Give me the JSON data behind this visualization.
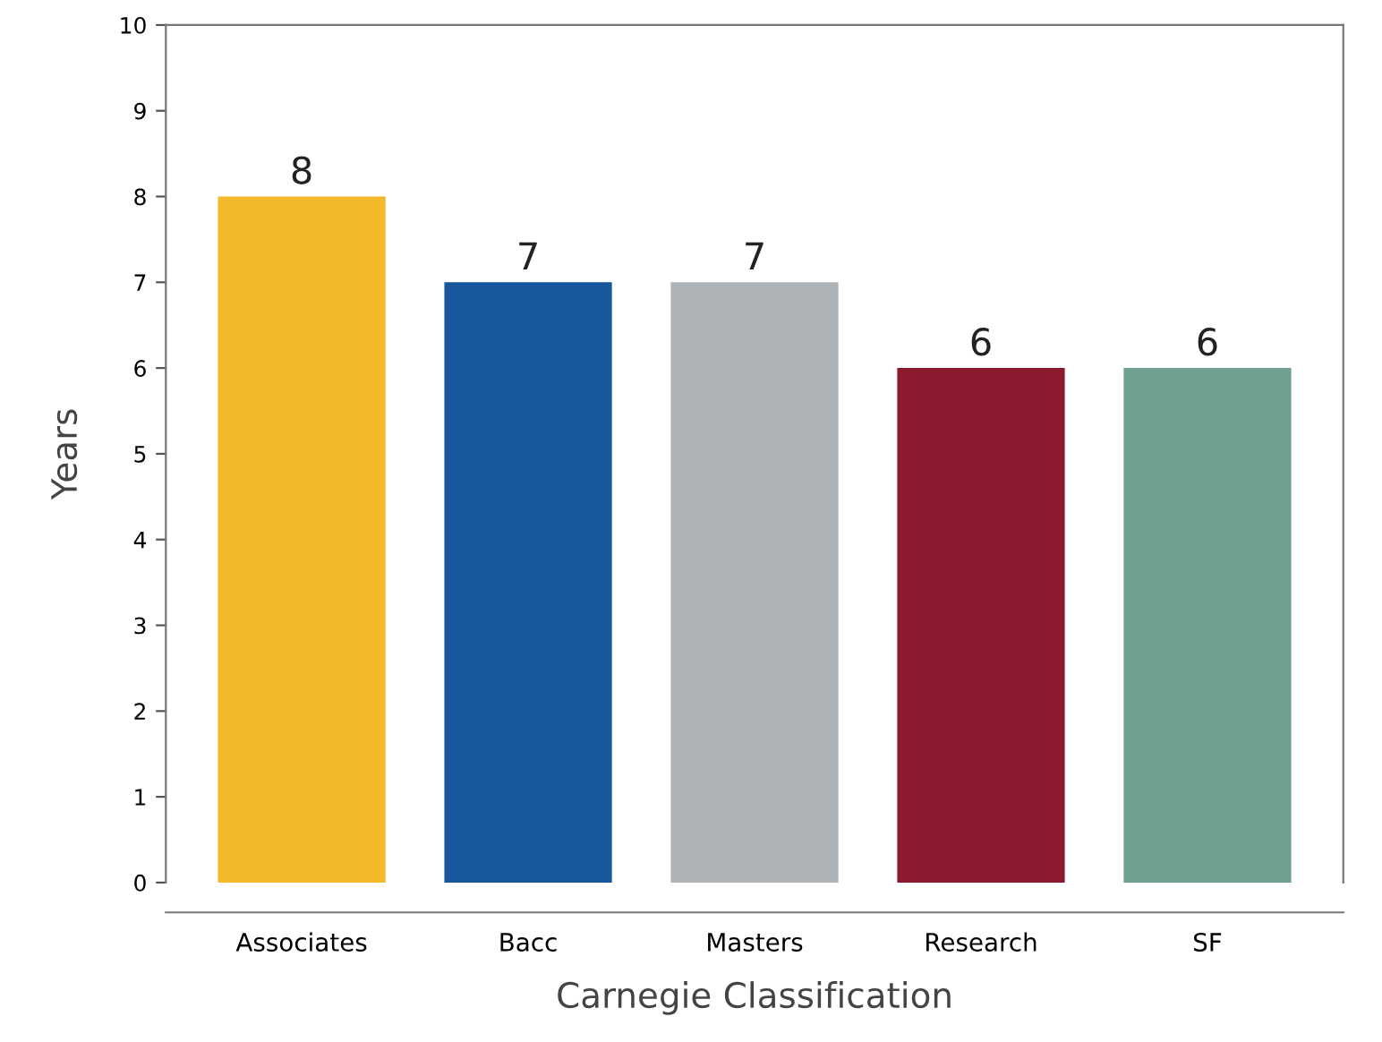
{
  "chart_data": {
    "type": "bar",
    "xlabel": "Carnegie Classification",
    "ylabel": "Years",
    "categories": [
      "Associates",
      "Bacc",
      "Masters",
      "Research",
      "SF"
    ],
    "values": [
      8,
      7,
      7,
      6,
      6
    ],
    "colors": [
      "#f4b92b",
      "#16589b",
      "#adb3b6",
      "#8b1a2e",
      "#6fa08f"
    ],
    "ylim": [
      0,
      10
    ],
    "yticks": [
      0,
      1,
      2,
      3,
      4,
      5,
      6,
      7,
      8,
      9,
      10
    ],
    "grid": false,
    "legend": false,
    "data_labels": true
  }
}
